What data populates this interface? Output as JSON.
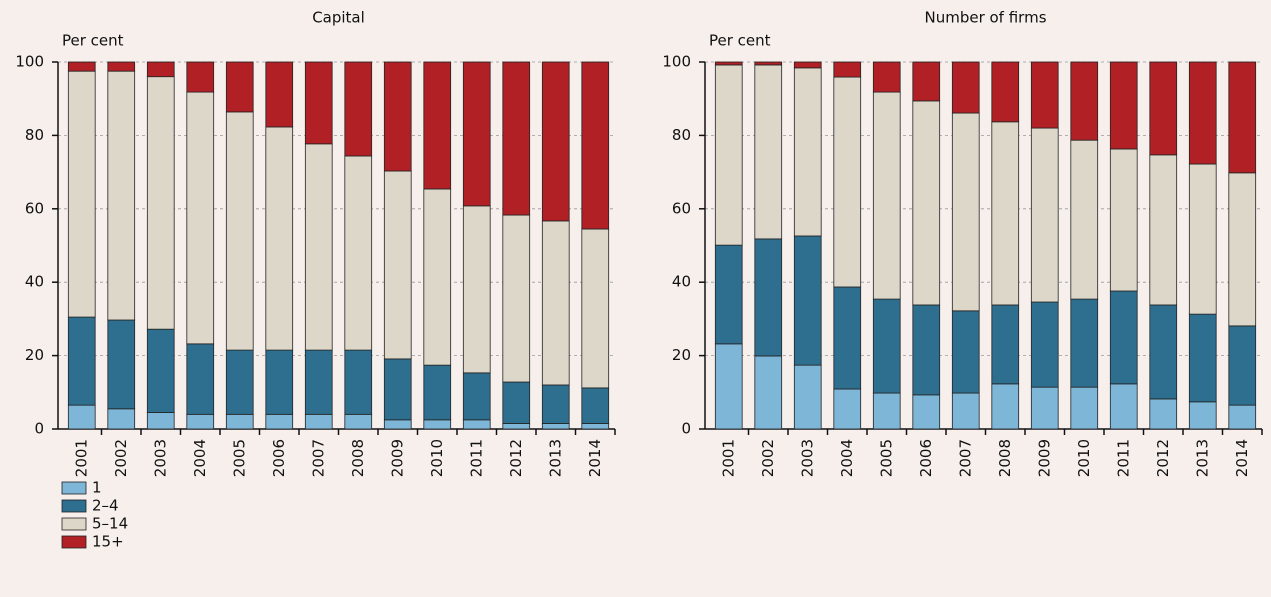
{
  "chart_data": [
    {
      "type": "bar",
      "stacked": true,
      "title": "Capital",
      "y_label": "Per cent",
      "categories": [
        "2001",
        "2002",
        "2003",
        "2004",
        "2005",
        "2006",
        "2007",
        "2008",
        "2009",
        "2010",
        "2011",
        "2012",
        "2013",
        "2014"
      ],
      "series": [
        {
          "name": "1",
          "color": "#7db6d6",
          "values": [
            6.5,
            5.5,
            4.5,
            4,
            4,
            4,
            4,
            4,
            2.5,
            2.5,
            2.5,
            1.5,
            1.5,
            1.5
          ]
        },
        {
          "name": "2–4",
          "color": "#2e6e8e",
          "values": [
            24,
            24.2,
            22.7,
            19.2,
            17.5,
            17.5,
            17.5,
            17.5,
            16.6,
            14.9,
            12.8,
            11.3,
            10.5,
            9.7
          ]
        },
        {
          "name": "5–14",
          "color": "#dcd7c8",
          "values": [
            67,
            67.8,
            68.8,
            68.6,
            64.9,
            60.8,
            56.2,
            52.9,
            51.2,
            48,
            45.5,
            45.5,
            44.7,
            43.3
          ]
        },
        {
          "name": "15+",
          "color": "#b02025",
          "values": [
            2.5,
            2.5,
            4,
            8.2,
            13.6,
            17.7,
            22.3,
            25.6,
            29.7,
            34.6,
            39.2,
            41.7,
            43.3,
            45.5
          ]
        }
      ],
      "ylim": [
        0,
        100
      ],
      "yticks": [
        0,
        20,
        40,
        60,
        80,
        100
      ],
      "grid": true
    },
    {
      "type": "bar",
      "stacked": true,
      "title": "Number of firms",
      "y_label": "Per cent",
      "categories": [
        "2001",
        "2002",
        "2003",
        "2004",
        "2005",
        "2006",
        "2007",
        "2008",
        "2009",
        "2010",
        "2011",
        "2012",
        "2013",
        "2014"
      ],
      "series": [
        {
          "color": "#7db6d6",
          "values": [
            23.2,
            19.9,
            17.4,
            10.9,
            9.8,
            9.3,
            9.8,
            12.3,
            11.4,
            11.4,
            12.3,
            8.2,
            7.4,
            6.5
          ]
        },
        {
          "color": "#2e6e8e",
          "values": [
            26.9,
            31.9,
            35.2,
            27.8,
            25.6,
            24.5,
            22.4,
            21.5,
            23.2,
            24,
            25.3,
            25.6,
            23.9,
            21.6
          ]
        },
        {
          "color": "#dcd7c8",
          "values": [
            49.1,
            47.4,
            45.8,
            57.2,
            56.4,
            55.6,
            53.9,
            49.9,
            47.4,
            43.3,
            38.7,
            40.9,
            40.9,
            41.7
          ]
        },
        {
          "color": "#b02025",
          "values": [
            0.8,
            0.8,
            1.6,
            4.1,
            8.2,
            10.6,
            13.9,
            16.3,
            18,
            21.3,
            23.7,
            25.3,
            27.8,
            30.2
          ]
        }
      ],
      "ylim": [
        0,
        100
      ],
      "yticks": [
        0,
        20,
        40,
        60,
        80,
        100
      ],
      "grid": true
    }
  ]
}
